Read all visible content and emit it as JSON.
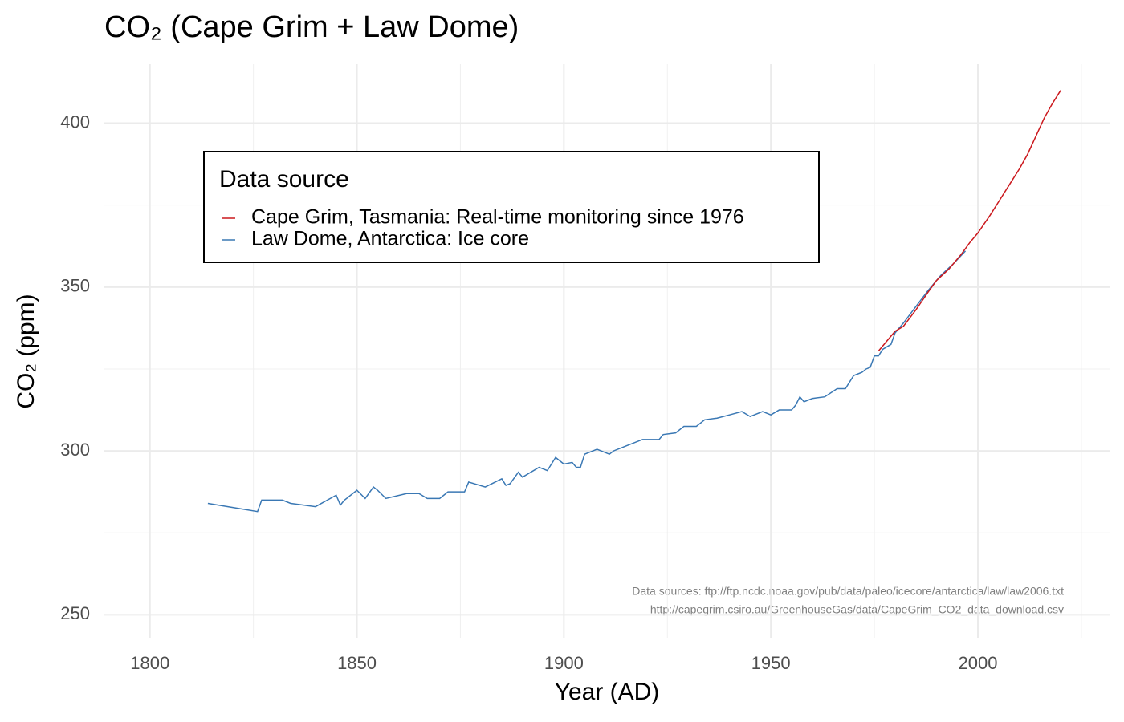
{
  "chart_data": {
    "type": "line",
    "title": "CO₂ (Cape Grim + Law Dome)",
    "x_label": "Year (AD)",
    "y_label": "CO₂ (ppm)",
    "legend_title": "Data source",
    "legend_position": "top-left",
    "caption": [
      "Data sources: ftp://ftp.ncdc.noaa.gov/pub/data/paleo/icecore/antarctica/law/law2006.txt",
      "http://capegrim.csiro.au/GreenhouseGas/data/CapeGrim_CO2_data_download.csv"
    ],
    "grid": true,
    "xlim": [
      1789,
      2032
    ],
    "xticks": [
      1800,
      1850,
      1900,
      1950,
      2000
    ],
    "x_minor_grid": [
      1825,
      1875,
      1925,
      1975,
      2025
    ],
    "ylim": [
      243,
      418
    ],
    "yticks": [
      250,
      300,
      350,
      400
    ],
    "y_minor_grid": [
      275,
      325,
      375
    ],
    "series": [
      {
        "name": "Cape Grim, Tasmania: Real-time monitoring since 1976",
        "color": "#cb181d",
        "x": [
          1976,
          1980,
          1982,
          1985,
          1988,
          1990,
          1993,
          1996,
          1998,
          2000,
          2003,
          2005,
          2008,
          2010,
          2012,
          2014,
          2016,
          2018,
          2020
        ],
        "values": [
          330.5,
          336.5,
          338,
          343,
          348.5,
          352,
          355.5,
          360,
          363.5,
          366.5,
          372,
          376,
          382,
          386,
          390.5,
          396,
          401.5,
          406,
          410
        ]
      },
      {
        "name": "Law Dome, Antarctica: Ice core",
        "color": "#3a78b4",
        "x": [
          1814,
          1826,
          1827,
          1832,
          1834,
          1840,
          1845,
          1846,
          1847,
          1850,
          1852,
          1854,
          1855,
          1857,
          1862,
          1865,
          1867,
          1870,
          1872,
          1876,
          1877,
          1881,
          1885,
          1886,
          1887,
          1889,
          1890,
          1894,
          1896,
          1898,
          1899,
          1900,
          1902,
          1903,
          1904,
          1905,
          1908,
          1911,
          1912,
          1915,
          1919,
          1923,
          1924,
          1927,
          1929,
          1932,
          1934,
          1937,
          1940,
          1943,
          1945,
          1948,
          1950,
          1952,
          1955,
          1956,
          1957,
          1958,
          1960,
          1963,
          1966,
          1968,
          1970,
          1972,
          1973,
          1974,
          1975,
          1976,
          1977,
          1979,
          1980,
          1982,
          1985,
          1988,
          1991,
          1994,
          1997
        ],
        "values": [
          284,
          281.5,
          285,
          285,
          284,
          283,
          286.5,
          283.5,
          285,
          288,
          285.5,
          289,
          288,
          285.5,
          287,
          287,
          285.5,
          285.5,
          287.5,
          287.5,
          290.5,
          289,
          291.5,
          289.5,
          290,
          293.5,
          292,
          295,
          294,
          298,
          297,
          296,
          296.5,
          295,
          295,
          299,
          300.5,
          299,
          300,
          301.5,
          303.5,
          303.5,
          305,
          305.5,
          307.5,
          307.5,
          309.5,
          310,
          311,
          312,
          310.5,
          312,
          311,
          312.5,
          312.5,
          314,
          316.5,
          315,
          316,
          316.5,
          319,
          319,
          323,
          324,
          325,
          325.5,
          329,
          329,
          331,
          332.5,
          336,
          339,
          344,
          349,
          353.5,
          357,
          361
        ]
      }
    ]
  }
}
